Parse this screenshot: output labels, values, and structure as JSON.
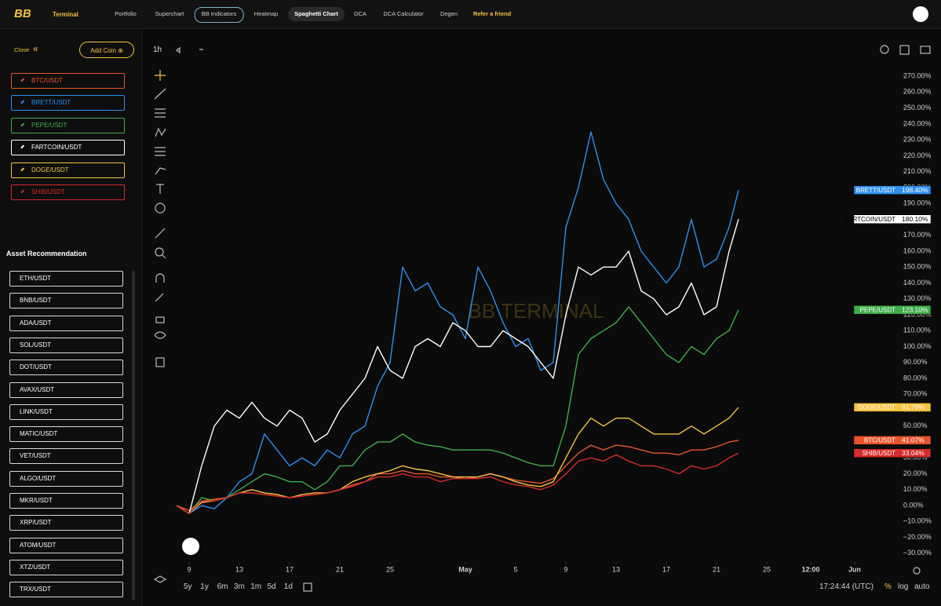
{
  "nav": {
    "logo": "BB",
    "brand": "Terminal",
    "tabs": [
      "Portfolio",
      "Superchart",
      "BB Indicators",
      "Heatmap",
      "Spaghetti Chart",
      "DCA",
      "DCA Calculator",
      "Degen",
      "Refer a friend"
    ]
  },
  "sidebar": {
    "close": "Close",
    "add_coin": "Add Coin",
    "recommend_title": "Asset Recommendation",
    "recommendations": [
      "ETH/USDT",
      "BNB/USDT",
      "ADA/USDT",
      "SOL/USDT",
      "DOT/USDT",
      "AVAX/USDT",
      "LINK/USDT",
      "MATIC/USDT",
      "VET/USDT",
      "ALGO/USDT",
      "MKR/USDT",
      "XRP/USDT",
      "ATOM/USDT",
      "XTZ/USDT",
      "TRX/USDT"
    ]
  },
  "toolbar": {
    "interval": "1h",
    "ranges": [
      "5y",
      "1y",
      "6m",
      "3m",
      "1m",
      "5d",
      "1d"
    ],
    "time": "17:24:44 (UTC)",
    "modes": [
      "%",
      "log",
      "auto"
    ]
  },
  "chart_data": {
    "type": "line",
    "watermark": "BB TERMINAL",
    "grid": false,
    "log_scale": false,
    "x": [
      -1,
      0,
      1,
      2,
      3,
      4,
      5,
      6,
      7,
      8,
      9,
      10,
      11,
      12,
      13,
      14,
      15,
      16,
      17,
      18,
      19,
      20,
      21,
      22,
      23,
      24,
      25,
      26,
      27,
      28,
      29,
      30,
      31,
      32,
      33,
      34,
      35,
      36,
      37,
      38,
      39,
      40,
      41,
      42,
      43,
      43.75
    ],
    "xlim": [
      -1.5,
      57
    ],
    "xticks": [
      {
        "value": 0,
        "label": "9"
      },
      {
        "value": 4,
        "label": "13"
      },
      {
        "value": 8,
        "label": "17"
      },
      {
        "value": 12,
        "label": "21"
      },
      {
        "value": 16,
        "label": "25"
      },
      {
        "value": 22,
        "label": "May"
      },
      {
        "value": 26,
        "label": "5"
      },
      {
        "value": 30,
        "label": "9"
      },
      {
        "value": 34,
        "label": "13"
      },
      {
        "value": 38,
        "label": "17"
      },
      {
        "value": 42,
        "label": "21"
      },
      {
        "value": 46,
        "label": "25"
      },
      {
        "value": 49.5,
        "label": "12:00"
      },
      {
        "value": 53,
        "label": "Jun"
      }
    ],
    "ylim": [
      -35,
      274
    ],
    "yticks": [
      {
        "value": -30,
        "label": "−30.00%"
      },
      {
        "value": -20,
        "label": "−20.00%"
      },
      {
        "value": -10,
        "label": "−10.00%"
      },
      {
        "value": 0,
        "label": "0.00%"
      },
      {
        "value": 10,
        "label": "10.00%"
      },
      {
        "value": 20,
        "label": "20.00%"
      },
      {
        "value": 30,
        "label": "30.00%"
      },
      {
        "value": 40,
        "label": "40.00%"
      },
      {
        "value": 50,
        "label": "50.00%"
      },
      {
        "value": 60,
        "label": "60.00%"
      },
      {
        "value": 70,
        "label": "70.00%"
      },
      {
        "value": 80,
        "label": "80.00%"
      },
      {
        "value": 90,
        "label": "90.00%"
      },
      {
        "value": 100,
        "label": "100.00%"
      },
      {
        "value": 110,
        "label": "110.00%"
      },
      {
        "value": 120,
        "label": "120.00%"
      },
      {
        "value": 130,
        "label": "130.00%"
      },
      {
        "value": 140,
        "label": "140.00%"
      },
      {
        "value": 150,
        "label": "150.00%"
      },
      {
        "value": 160,
        "label": "160.00%"
      },
      {
        "value": 170,
        "label": "170.00%"
      },
      {
        "value": 180,
        "label": "180.00%"
      },
      {
        "value": 190,
        "label": "190.00%"
      },
      {
        "value": 200,
        "label": "200.00%"
      },
      {
        "value": 210,
        "label": "210.00%"
      },
      {
        "value": 220,
        "label": "220.00%"
      },
      {
        "value": 230,
        "label": "230.00%"
      },
      {
        "value": 240,
        "label": "240.00%"
      },
      {
        "value": 250,
        "label": "250.00%"
      },
      {
        "value": 260,
        "label": "260.00%"
      },
      {
        "value": 270,
        "label": "270.00%"
      }
    ],
    "series": [
      {
        "name": "BTC/USDT",
        "color": "#e8542c",
        "values": [
          0,
          -3,
          3,
          4,
          5,
          8,
          8,
          7,
          6,
          5,
          6,
          7,
          8,
          10,
          13,
          15,
          20,
          20,
          22,
          20,
          20,
          18,
          18,
          17,
          18,
          20,
          18,
          16,
          15,
          14,
          17,
          25,
          33,
          38,
          35,
          38,
          37,
          35,
          33,
          33,
          32,
          35,
          35,
          37,
          40,
          41.07
        ],
        "value_labels": [
          null,
          null,
          null,
          null,
          null,
          null,
          null,
          null,
          null,
          null,
          null,
          null,
          null,
          null,
          null,
          null,
          null,
          null,
          null,
          null,
          null,
          null,
          null,
          null,
          null,
          null,
          null,
          null,
          null,
          null,
          null,
          null,
          null,
          null,
          null,
          null,
          null,
          null,
          null,
          null,
          null,
          null,
          null,
          null,
          null,
          "41.07%"
        ]
      },
      {
        "name": "BRETT/USDT",
        "color": "#2f8ff0",
        "values": [
          0,
          -5,
          0,
          -2,
          5,
          15,
          20,
          45,
          35,
          25,
          30,
          25,
          35,
          30,
          45,
          50,
          75,
          90,
          150,
          135,
          140,
          125,
          120,
          105,
          150,
          135,
          115,
          100,
          105,
          85,
          90,
          175,
          200,
          235,
          205,
          190,
          180,
          160,
          150,
          140,
          150,
          180,
          150,
          155,
          175,
          198.4
        ],
        "value_labels": [
          null,
          null,
          null,
          null,
          null,
          null,
          null,
          null,
          null,
          null,
          null,
          null,
          null,
          null,
          null,
          null,
          null,
          null,
          null,
          null,
          null,
          null,
          null,
          null,
          null,
          null,
          null,
          null,
          null,
          null,
          null,
          null,
          null,
          null,
          null,
          null,
          null,
          null,
          null,
          null,
          null,
          null,
          null,
          null,
          null,
          "198.40%"
        ]
      },
      {
        "name": "PEPE/USDT",
        "color": "#3fae49",
        "values": [
          0,
          -5,
          5,
          3,
          5,
          10,
          15,
          20,
          18,
          15,
          15,
          10,
          15,
          25,
          25,
          35,
          40,
          40,
          45,
          40,
          38,
          37,
          35,
          35,
          35,
          35,
          33,
          30,
          27,
          25,
          25,
          50,
          95,
          105,
          110,
          115,
          125,
          115,
          105,
          95,
          90,
          100,
          95,
          105,
          110,
          123.1
        ],
        "value_labels": [
          null,
          null,
          null,
          null,
          null,
          null,
          null,
          null,
          null,
          null,
          null,
          null,
          null,
          null,
          null,
          null,
          null,
          null,
          null,
          null,
          null,
          null,
          null,
          null,
          null,
          null,
          null,
          null,
          null,
          null,
          null,
          null,
          null,
          null,
          null,
          null,
          null,
          null,
          null,
          null,
          null,
          null,
          null,
          null,
          null,
          "123.10%"
        ]
      },
      {
        "name": "FARTCOIN/USDT",
        "color": "#ffffff",
        "values": [
          0,
          -5,
          25,
          50,
          60,
          55,
          65,
          55,
          50,
          60,
          55,
          40,
          45,
          60,
          70,
          80,
          100,
          85,
          80,
          100,
          105,
          100,
          115,
          110,
          100,
          100,
          110,
          105,
          100,
          90,
          80,
          120,
          150,
          145,
          150,
          150,
          160,
          135,
          130,
          120,
          125,
          140,
          120,
          125,
          160,
          180.1
        ],
        "value_labels": [
          null,
          null,
          null,
          null,
          null,
          null,
          null,
          null,
          null,
          null,
          null,
          null,
          null,
          null,
          null,
          null,
          null,
          null,
          null,
          null,
          null,
          null,
          null,
          null,
          null,
          null,
          null,
          null,
          null,
          null,
          null,
          null,
          null,
          null,
          null,
          null,
          null,
          null,
          null,
          null,
          null,
          null,
          null,
          null,
          null,
          "180.10%"
        ]
      },
      {
        "name": "DOGE/USDT",
        "color": "#f5c242",
        "values": [
          0,
          -5,
          2,
          3,
          5,
          8,
          10,
          8,
          7,
          5,
          7,
          8,
          8,
          10,
          15,
          18,
          20,
          22,
          25,
          23,
          22,
          20,
          18,
          18,
          18,
          20,
          18,
          15,
          13,
          12,
          15,
          30,
          45,
          55,
          50,
          55,
          55,
          50,
          45,
          45,
          45,
          50,
          45,
          50,
          55,
          61.79
        ],
        "value_labels": [
          null,
          null,
          null,
          null,
          null,
          null,
          null,
          null,
          null,
          null,
          null,
          null,
          null,
          null,
          null,
          null,
          null,
          null,
          null,
          null,
          null,
          null,
          null,
          null,
          null,
          null,
          null,
          null,
          null,
          null,
          null,
          null,
          null,
          null,
          null,
          null,
          null,
          null,
          null,
          null,
          null,
          null,
          null,
          null,
          null,
          "61.79%"
        ]
      },
      {
        "name": "SHIB/USDT",
        "color": "#d62b2b",
        "values": [
          0,
          -5,
          3,
          3,
          5,
          8,
          8,
          7,
          6,
          5,
          6,
          7,
          8,
          10,
          12,
          15,
          18,
          18,
          20,
          18,
          18,
          15,
          17,
          17,
          17,
          18,
          15,
          13,
          12,
          10,
          13,
          20,
          28,
          30,
          28,
          32,
          28,
          25,
          25,
          23,
          20,
          25,
          23,
          25,
          30,
          33.04
        ],
        "value_labels": [
          null,
          null,
          null,
          null,
          null,
          null,
          null,
          null,
          null,
          null,
          null,
          null,
          null,
          null,
          null,
          null,
          null,
          null,
          null,
          null,
          null,
          null,
          null,
          null,
          null,
          null,
          null,
          null,
          null,
          null,
          null,
          null,
          null,
          null,
          null,
          null,
          null,
          null,
          null,
          null,
          null,
          null,
          null,
          null,
          null,
          "33.04%"
        ]
      }
    ]
  }
}
